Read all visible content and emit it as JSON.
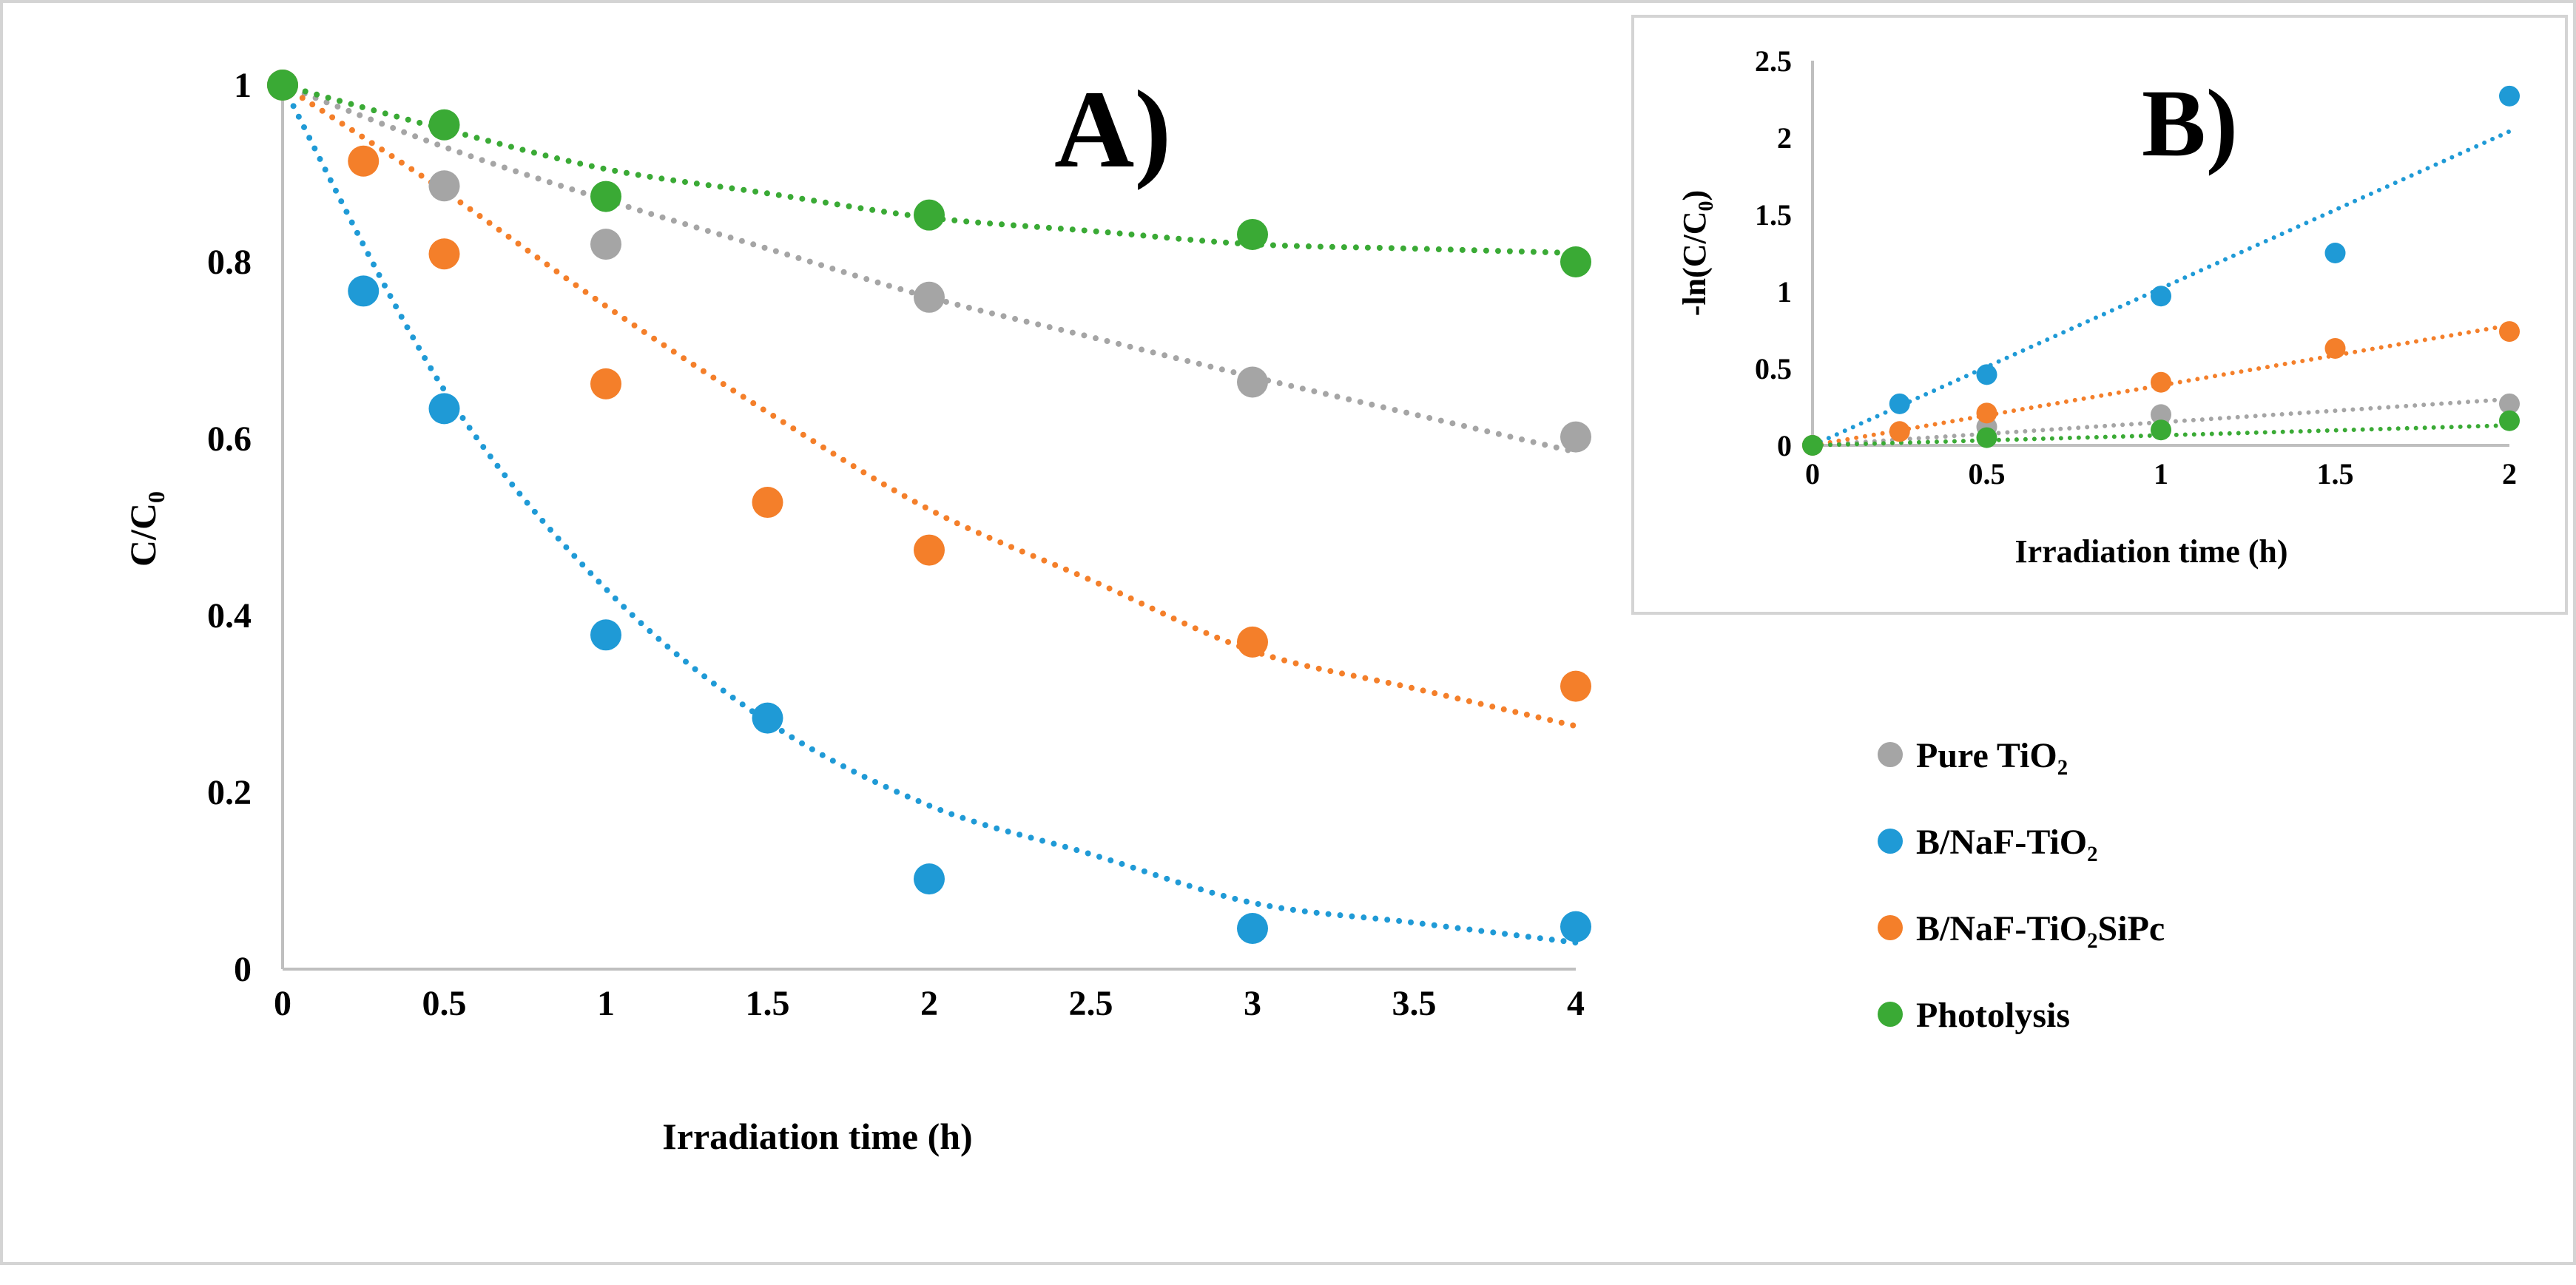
{
  "chart_data": [
    {
      "id": "A",
      "type": "scatter",
      "panel_label": "A)",
      "xlabel": "Irradiation time (h)",
      "ylabel": "C/C",
      "ylabel_sub": "0",
      "xlim": [
        0,
        4
      ],
      "ylim": [
        0,
        1
      ],
      "xticks": [
        "0",
        "0.5",
        "1",
        "1.5",
        "2",
        "2.5",
        "3",
        "3.5",
        "4"
      ],
      "yticks": [
        "0",
        "0.2",
        "0.4",
        "0.6",
        "0.8",
        "1"
      ],
      "trendline": "dotted fitted curve per series",
      "series": [
        {
          "name": "Pure TiO₂",
          "color": "#a5a5a5",
          "x": [
            0,
            0.5,
            1,
            2,
            3,
            4
          ],
          "y": [
            1.0,
            0.886,
            0.82,
            0.76,
            0.664,
            0.602
          ],
          "fit": [
            1.0,
            0.93,
            0.87,
            0.76,
            0.67,
            0.585
          ]
        },
        {
          "name": "B/NaF-TiO₂",
          "color": "#1f9ad6",
          "x": [
            0,
            0.25,
            0.5,
            1,
            1.5,
            2,
            3,
            4
          ],
          "y": [
            1.0,
            0.767,
            0.634,
            0.378,
            0.284,
            0.102,
            0.046,
            0.048
          ],
          "fit": [
            1.0,
            0.81,
            0.655,
            0.43,
            0.28,
            0.185,
            0.075,
            0.03
          ]
        },
        {
          "name": "B/NaF-TiO₂SiPc",
          "color": "#f47f2a",
          "x": [
            0,
            0.25,
            0.5,
            1,
            1.5,
            2,
            3,
            4
          ],
          "y": [
            1.0,
            0.914,
            0.809,
            0.662,
            0.528,
            0.474,
            0.37,
            0.32
          ],
          "fit": [
            1.0,
            0.94,
            0.88,
            0.75,
            0.63,
            0.52,
            0.36,
            0.275
          ]
        },
        {
          "name": "Photolysis",
          "color": "#3aaa35",
          "x": [
            0,
            0.5,
            1,
            2,
            3,
            4
          ],
          "y": [
            1.0,
            0.955,
            0.874,
            0.853,
            0.831,
            0.8
          ],
          "fit": [
            1.0,
            0.95,
            0.905,
            0.85,
            0.82,
            0.81
          ]
        }
      ]
    },
    {
      "id": "B",
      "type": "scatter",
      "panel_label": "B)",
      "xlabel": "Irradiation time (h)",
      "ylabel": "-ln(C/C",
      "ylabel_sub": "0",
      "ylabel_end": ")",
      "xlim": [
        0,
        2
      ],
      "ylim": [
        0,
        2.5
      ],
      "xticks": [
        "0",
        "0.5",
        "1",
        "1.5",
        "2"
      ],
      "yticks": [
        "0",
        "0.5",
        "1",
        "1.5",
        "2",
        "2.5"
      ],
      "trendline": "dotted linear fit through origin",
      "series": [
        {
          "name": "Pure TiO₂",
          "color": "#a5a5a5",
          "x": [
            0,
            0.5,
            1,
            2
          ],
          "y": [
            0,
            0.12,
            0.2,
            0.27
          ],
          "slope": 0.15
        },
        {
          "name": "B/NaF-TiO₂",
          "color": "#1f9ad6",
          "x": [
            0,
            0.25,
            0.5,
            1,
            1.5,
            2
          ],
          "y": [
            0,
            0.27,
            0.46,
            0.97,
            1.25,
            2.27
          ],
          "slope": 1.02
        },
        {
          "name": "B/NaF-TiO₂SiPc",
          "color": "#f47f2a",
          "x": [
            0,
            0.25,
            0.5,
            1,
            1.5,
            2
          ],
          "y": [
            0,
            0.09,
            0.21,
            0.41,
            0.63,
            0.74
          ],
          "slope": 0.39
        },
        {
          "name": "Photolysis",
          "color": "#3aaa35",
          "x": [
            0,
            0.5,
            1,
            2
          ],
          "y": [
            0,
            0.05,
            0.1,
            0.16
          ],
          "slope": 0.065
        }
      ]
    }
  ],
  "legend": [
    {
      "label": "Pure TiO₂",
      "color": "#a5a5a5"
    },
    {
      "label": "B/NaF-TiO₂",
      "color": "#1f9ad6"
    },
    {
      "label": "B/NaF-TiO₂SiPc",
      "color": "#f47f2a"
    },
    {
      "label": "Photolysis",
      "color": "#3aaa35"
    }
  ]
}
